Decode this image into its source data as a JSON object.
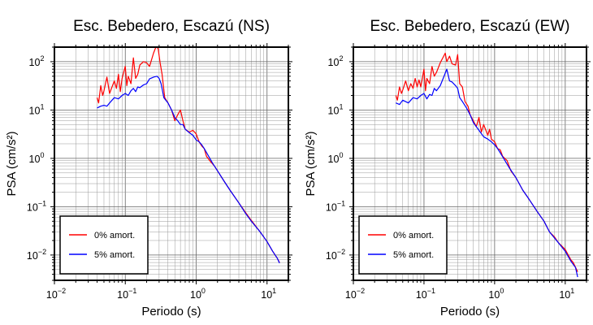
{
  "chart_data": [
    {
      "type": "line",
      "title": "Esc. Bebedero, Escazú (NS)",
      "xlabel": "Periodo (s)",
      "ylabel": "PSA (cm/s²)",
      "xscale": "log",
      "yscale": "log",
      "xlim": [
        0.01,
        20
      ],
      "ylim": [
        0.003,
        200
      ],
      "x_ticks": [
        "10^-2",
        "10^-1",
        "10^0",
        "10^1"
      ],
      "y_ticks": [
        "10^-2",
        "10^-1",
        "10^0",
        "10^1",
        "10^2"
      ],
      "grid": true,
      "legend_position": "bottom-left",
      "series": [
        {
          "name": "0% amort.",
          "color": "#ff0000",
          "points": [
            [
              0.04,
              18
            ],
            [
              0.042,
              14
            ],
            [
              0.045,
              32
            ],
            [
              0.048,
              20
            ],
            [
              0.05,
              25
            ],
            [
              0.055,
              48
            ],
            [
              0.06,
              22
            ],
            [
              0.065,
              30
            ],
            [
              0.07,
              40
            ],
            [
              0.075,
              28
            ],
            [
              0.08,
              55
            ],
            [
              0.085,
              24
            ],
            [
              0.09,
              45
            ],
            [
              0.1,
              80
            ],
            [
              0.105,
              32
            ],
            [
              0.11,
              50
            ],
            [
              0.12,
              35
            ],
            [
              0.13,
              120
            ],
            [
              0.14,
              45
            ],
            [
              0.15,
              55
            ],
            [
              0.16,
              85
            ],
            [
              0.18,
              100
            ],
            [
              0.2,
              95
            ],
            [
              0.22,
              80
            ],
            [
              0.25,
              150
            ],
            [
              0.27,
              200
            ],
            [
              0.29,
              190
            ],
            [
              0.31,
              95
            ],
            [
              0.33,
              55
            ],
            [
              0.36,
              18
            ],
            [
              0.4,
              14
            ],
            [
              0.45,
              10
            ],
            [
              0.5,
              6
            ],
            [
              0.55,
              8
            ],
            [
              0.6,
              10
            ],
            [
              0.65,
              6
            ],
            [
              0.7,
              4
            ],
            [
              0.8,
              3.5
            ],
            [
              0.9,
              3.8
            ],
            [
              1,
              3.2
            ],
            [
              1.1,
              2.2
            ],
            [
              1.2,
              1.8
            ],
            [
              1.3,
              1.6
            ],
            [
              1.4,
              1.1
            ],
            [
              1.6,
              0.85
            ],
            [
              1.8,
              0.7
            ],
            [
              2,
              0.55
            ],
            [
              2.5,
              0.33
            ],
            [
              3,
              0.22
            ],
            [
              4,
              0.12
            ],
            [
              5,
              0.075
            ],
            [
              6,
              0.052
            ],
            [
              8,
              0.03
            ],
            [
              10,
              0.019
            ],
            [
              12,
              0.012
            ],
            [
              14,
              0.0085
            ],
            [
              15,
              0.007
            ]
          ]
        },
        {
          "name": "5% amort.",
          "color": "#0000ff",
          "points": [
            [
              0.04,
              11
            ],
            [
              0.045,
              12
            ],
            [
              0.05,
              12.5
            ],
            [
              0.055,
              12
            ],
            [
              0.06,
              14
            ],
            [
              0.07,
              18
            ],
            [
              0.08,
              17
            ],
            [
              0.09,
              20
            ],
            [
              0.1,
              22
            ],
            [
              0.11,
              20
            ],
            [
              0.12,
              25
            ],
            [
              0.13,
              28
            ],
            [
              0.14,
              24
            ],
            [
              0.15,
              30
            ],
            [
              0.16,
              29
            ],
            [
              0.18,
              33
            ],
            [
              0.2,
              35
            ],
            [
              0.22,
              44
            ],
            [
              0.25,
              48
            ],
            [
              0.28,
              50
            ],
            [
              0.3,
              45
            ],
            [
              0.32,
              35
            ],
            [
              0.35,
              18
            ],
            [
              0.4,
              14
            ],
            [
              0.45,
              10
            ],
            [
              0.5,
              7
            ],
            [
              0.55,
              6
            ],
            [
              0.6,
              5
            ],
            [
              0.65,
              5
            ],
            [
              0.7,
              4
            ],
            [
              0.8,
              3.4
            ],
            [
              0.9,
              3
            ],
            [
              1,
              2.4
            ],
            [
              1.1,
              2.2
            ],
            [
              1.2,
              1.9
            ],
            [
              1.3,
              1.6
            ],
            [
              1.5,
              1.1
            ],
            [
              1.7,
              0.8
            ],
            [
              2,
              0.55
            ],
            [
              2.5,
              0.33
            ],
            [
              3,
              0.22
            ],
            [
              4,
              0.12
            ],
            [
              5,
              0.072
            ],
            [
              6,
              0.05
            ],
            [
              8,
              0.03
            ],
            [
              10,
              0.019
            ],
            [
              12,
              0.012
            ],
            [
              14,
              0.0085
            ],
            [
              15,
              0.0068
            ]
          ]
        }
      ]
    },
    {
      "type": "line",
      "title": "Esc. Bebedero, Escazú (EW)",
      "xlabel": "Periodo (s)",
      "ylabel": "PSA (cm/s²)",
      "xscale": "log",
      "yscale": "log",
      "xlim": [
        0.01,
        20
      ],
      "ylim": [
        0.003,
        200
      ],
      "x_ticks": [
        "10^-2",
        "10^-1",
        "10^0",
        "10^1"
      ],
      "y_ticks": [
        "10^-2",
        "10^-1",
        "10^0",
        "10^1",
        "10^2"
      ],
      "grid": true,
      "legend_position": "bottom-left",
      "series": [
        {
          "name": "0% amort.",
          "color": "#ff0000",
          "points": [
            [
              0.04,
              20
            ],
            [
              0.042,
              16
            ],
            [
              0.045,
              30
            ],
            [
              0.048,
              22
            ],
            [
              0.05,
              26
            ],
            [
              0.055,
              40
            ],
            [
              0.06,
              25
            ],
            [
              0.065,
              35
            ],
            [
              0.07,
              28
            ],
            [
              0.075,
              45
            ],
            [
              0.08,
              30
            ],
            [
              0.085,
              42
            ],
            [
              0.09,
              30
            ],
            [
              0.1,
              70
            ],
            [
              0.105,
              25
            ],
            [
              0.11,
              45
            ],
            [
              0.12,
              35
            ],
            [
              0.13,
              80
            ],
            [
              0.14,
              50
            ],
            [
              0.15,
              60
            ],
            [
              0.17,
              95
            ],
            [
              0.19,
              130
            ],
            [
              0.2,
              150
            ],
            [
              0.21,
              100
            ],
            [
              0.23,
              130
            ],
            [
              0.25,
              90
            ],
            [
              0.28,
              85
            ],
            [
              0.3,
              140
            ],
            [
              0.32,
              35
            ],
            [
              0.35,
              30
            ],
            [
              0.38,
              15
            ],
            [
              0.42,
              12
            ],
            [
              0.45,
              8
            ],
            [
              0.5,
              6
            ],
            [
              0.55,
              4.5
            ],
            [
              0.6,
              7
            ],
            [
              0.65,
              3.5
            ],
            [
              0.7,
              5
            ],
            [
              0.8,
              3
            ],
            [
              0.85,
              4
            ],
            [
              0.9,
              2.5
            ],
            [
              1,
              2.2
            ],
            [
              1.1,
              1.6
            ],
            [
              1.2,
              1.5
            ],
            [
              1.3,
              1.1
            ],
            [
              1.5,
              0.9
            ],
            [
              1.7,
              0.55
            ],
            [
              2,
              0.4
            ],
            [
              2.5,
              0.22
            ],
            [
              3,
              0.15
            ],
            [
              4,
              0.08
            ],
            [
              5,
              0.05
            ],
            [
              6,
              0.03
            ],
            [
              7,
              0.024
            ],
            [
              8,
              0.018
            ],
            [
              10,
              0.013
            ],
            [
              12,
              0.008
            ],
            [
              13,
              0.007
            ],
            [
              15,
              0.0045
            ]
          ]
        },
        {
          "name": "5% amort.",
          "color": "#0000ff",
          "points": [
            [
              0.04,
              14
            ],
            [
              0.045,
              13
            ],
            [
              0.05,
              16
            ],
            [
              0.06,
              14
            ],
            [
              0.07,
              18
            ],
            [
              0.08,
              17
            ],
            [
              0.09,
              20
            ],
            [
              0.1,
              22
            ],
            [
              0.11,
              17
            ],
            [
              0.12,
              21
            ],
            [
              0.13,
              20
            ],
            [
              0.14,
              28
            ],
            [
              0.15,
              25
            ],
            [
              0.17,
              32
            ],
            [
              0.19,
              48
            ],
            [
              0.21,
              70
            ],
            [
              0.23,
              40
            ],
            [
              0.25,
              38
            ],
            [
              0.28,
              32
            ],
            [
              0.3,
              28
            ],
            [
              0.32,
              18
            ],
            [
              0.35,
              15
            ],
            [
              0.4,
              11
            ],
            [
              0.45,
              8
            ],
            [
              0.5,
              5.5
            ],
            [
              0.6,
              3.8
            ],
            [
              0.7,
              2.8
            ],
            [
              0.8,
              2.5
            ],
            [
              0.9,
              2.2
            ],
            [
              1,
              1.9
            ],
            [
              1.1,
              1.6
            ],
            [
              1.2,
              1.3
            ],
            [
              1.4,
              0.9
            ],
            [
              1.6,
              0.65
            ],
            [
              2,
              0.4
            ],
            [
              2.5,
              0.22
            ],
            [
              3,
              0.15
            ],
            [
              4,
              0.08
            ],
            [
              5,
              0.05
            ],
            [
              6,
              0.03
            ],
            [
              8,
              0.018
            ],
            [
              10,
              0.012
            ],
            [
              12,
              0.0075
            ],
            [
              14,
              0.0055
            ],
            [
              15,
              0.0035
            ]
          ]
        }
      ]
    }
  ]
}
